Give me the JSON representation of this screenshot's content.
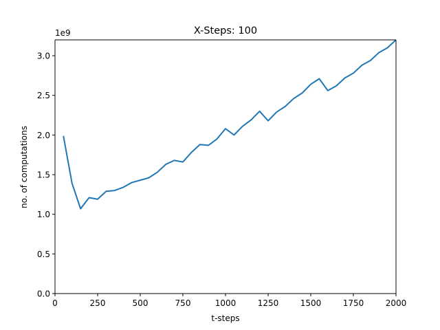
{
  "chart_data": {
    "type": "line",
    "title": "X-Steps: 100",
    "xlabel": "t-steps",
    "ylabel": "no. of computations",
    "y_offset_label": "1e9",
    "xlim": [
      0,
      2000
    ],
    "ylim": [
      0,
      3.2
    ],
    "y_scale_factor": 1000000000,
    "x_ticks": [
      0,
      250,
      500,
      750,
      1000,
      1250,
      1500,
      1750,
      2000
    ],
    "x_tick_labels": [
      "0",
      "250",
      "500",
      "750",
      "1000",
      "1250",
      "1500",
      "1750",
      "2000"
    ],
    "y_ticks": [
      0,
      0.5,
      1.0,
      1.5,
      2.0,
      2.5,
      3.0
    ],
    "y_tick_labels": [
      "0.0",
      "0.5",
      "1.0",
      "1.5",
      "2.0",
      "2.5",
      "3.0"
    ],
    "grid": false,
    "legend": "none",
    "series": [
      {
        "color": "#1f77b4",
        "x": [
          50,
          100,
          150,
          200,
          250,
          300,
          350,
          400,
          450,
          500,
          550,
          600,
          650,
          700,
          750,
          800,
          850,
          900,
          950,
          1000,
          1050,
          1100,
          1150,
          1200,
          1250,
          1300,
          1350,
          1400,
          1450,
          1500,
          1550,
          1600,
          1650,
          1700,
          1750,
          1800,
          1850,
          1900,
          1950,
          2000
        ],
        "y": [
          1.98,
          1.39,
          1.07,
          1.21,
          1.19,
          1.29,
          1.3,
          1.34,
          1.4,
          1.43,
          1.46,
          1.53,
          1.63,
          1.68,
          1.66,
          1.78,
          1.88,
          1.87,
          1.95,
          2.08,
          2.0,
          2.11,
          2.19,
          2.3,
          2.18,
          2.29,
          2.36,
          2.46,
          2.53,
          2.64,
          2.71,
          2.56,
          2.62,
          2.72,
          2.78,
          2.88,
          2.94,
          3.04,
          3.1,
          3.2
        ]
      }
    ]
  }
}
